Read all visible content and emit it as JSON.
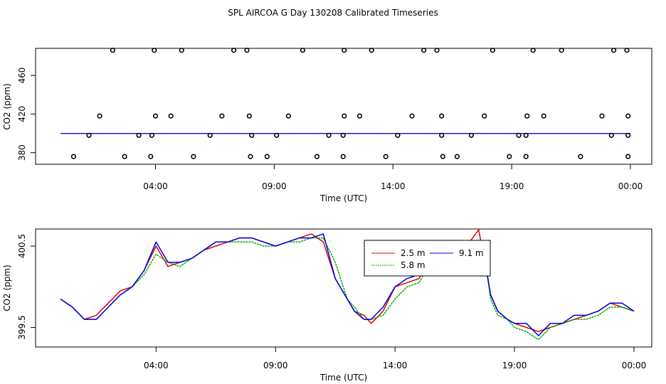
{
  "title": "SPL AIRCOA G  Day 130208  Calibrated Timeseries",
  "colors": {
    "s25": "#e00000",
    "s58": "#00b000",
    "s91": "#0000e0",
    "axis": "#000000",
    "bg": "#ffffff"
  },
  "chart_data": [
    {
      "type": "scatter",
      "title": "SPL AIRCOA G  Day 130208  Calibrated Timeseries",
      "xlabel": "Time (UTC)",
      "ylabel": "CO2 (ppm)",
      "xlim": [
        0,
        24
      ],
      "ylim": [
        368,
        488
      ],
      "xticks": [
        4,
        9,
        14,
        19,
        24
      ],
      "xtick_labels": [
        "04:00",
        "09:00",
        "14:00",
        "19:00",
        "00:00"
      ],
      "yticks": [
        380,
        420,
        460
      ],
      "ytick_labels": [
        "380",
        "420",
        "460"
      ],
      "points_description": "Calibration standard measurements (circles) at roughly 376, 398, 418 and 486 ppm",
      "points": [
        [
          0.55,
          376
        ],
        [
          2.7,
          376
        ],
        [
          3.8,
          376
        ],
        [
          5.6,
          376
        ],
        [
          8.0,
          376
        ],
        [
          8.7,
          376
        ],
        [
          10.8,
          376
        ],
        [
          11.9,
          376
        ],
        [
          13.7,
          376
        ],
        [
          16.1,
          376
        ],
        [
          16.7,
          376
        ],
        [
          18.9,
          376
        ],
        [
          19.6,
          376
        ],
        [
          21.9,
          376
        ],
        [
          23.9,
          376
        ],
        [
          1.2,
          398
        ],
        [
          3.3,
          398
        ],
        [
          3.85,
          398
        ],
        [
          6.3,
          398
        ],
        [
          8.05,
          398
        ],
        [
          9.1,
          398
        ],
        [
          11.3,
          398
        ],
        [
          11.9,
          398
        ],
        [
          14.2,
          398
        ],
        [
          16.05,
          398
        ],
        [
          17.3,
          398
        ],
        [
          19.3,
          398
        ],
        [
          19.6,
          398
        ],
        [
          23.2,
          398
        ],
        [
          23.9,
          398
        ],
        [
          1.65,
          418
        ],
        [
          4.0,
          418
        ],
        [
          4.65,
          418
        ],
        [
          6.8,
          418
        ],
        [
          7.95,
          418
        ],
        [
          9.6,
          418
        ],
        [
          11.95,
          418
        ],
        [
          12.6,
          418
        ],
        [
          14.8,
          418
        ],
        [
          16.05,
          418
        ],
        [
          17.85,
          418
        ],
        [
          19.65,
          418
        ],
        [
          20.35,
          418
        ],
        [
          22.8,
          418
        ],
        [
          23.9,
          418
        ],
        [
          2.2,
          486
        ],
        [
          3.95,
          486
        ],
        [
          5.1,
          486
        ],
        [
          7.3,
          486
        ],
        [
          7.85,
          486
        ],
        [
          10.2,
          486
        ],
        [
          11.95,
          486
        ],
        [
          13.1,
          486
        ],
        [
          15.3,
          486
        ],
        [
          15.85,
          486
        ],
        [
          18.2,
          486
        ],
        [
          19.9,
          486
        ],
        [
          21.1,
          486
        ],
        [
          23.3,
          486
        ],
        [
          23.85,
          486
        ]
      ],
      "series": [
        {
          "name": "2.5 m",
          "values": [
            [
              0,
              399.85
            ],
            [
              24,
              399.9
            ]
          ]
        },
        {
          "name": "5.8 m",
          "values": [
            [
              0,
              399.85
            ],
            [
              24,
              399.9
            ]
          ]
        },
        {
          "name": "9.1 m",
          "values": [
            [
              0,
              399.9
            ],
            [
              24,
              399.9
            ]
          ]
        }
      ]
    },
    {
      "type": "line",
      "xlabel": "Time (UTC)",
      "ylabel": "CO2 (ppm)",
      "xlim": [
        0,
        24
      ],
      "ylim": [
        399.26,
        400.71
      ],
      "xticks": [
        4,
        9,
        14,
        19,
        24
      ],
      "xtick_labels": [
        "04:00",
        "09:00",
        "14:00",
        "19:00",
        "00:00"
      ],
      "yticks": [
        399.5,
        400.5
      ],
      "ytick_labels": [
        "399.5",
        "400.5"
      ],
      "legend": [
        "2.5 m",
        "5.8 m",
        "9.1 m"
      ],
      "legend_placement": "top-center",
      "x": [
        0.0,
        0.5,
        1.0,
        1.5,
        2.0,
        2.5,
        3.0,
        3.5,
        4.0,
        4.5,
        5.0,
        5.5,
        6.0,
        6.5,
        7.0,
        7.5,
        8.0,
        8.5,
        9.0,
        9.5,
        10.0,
        10.5,
        11.0,
        11.5,
        12.0,
        12.3,
        12.7,
        13.0,
        13.5,
        14.0,
        14.5,
        15.0,
        15.5,
        16.0,
        16.5,
        17.0,
        17.5,
        17.7,
        18.0,
        18.3,
        18.7,
        19.0,
        19.5,
        20.0,
        20.5,
        21.0,
        21.5,
        22.0,
        22.5,
        23.0,
        23.5,
        24.0
      ],
      "series": [
        {
          "name": "2.5 m",
          "values": [
            399.85,
            399.75,
            399.6,
            399.65,
            399.8,
            399.95,
            400.0,
            400.2,
            400.5,
            400.25,
            400.3,
            400.35,
            400.45,
            400.5,
            400.55,
            400.6,
            400.6,
            400.55,
            400.5,
            400.55,
            400.6,
            400.65,
            400.55,
            400.1,
            399.85,
            399.7,
            399.65,
            399.55,
            399.7,
            400.0,
            400.05,
            400.1,
            400.35,
            400.2,
            400.3,
            400.5,
            400.7,
            400.4,
            399.9,
            399.7,
            399.6,
            399.55,
            399.5,
            399.45,
            399.5,
            399.55,
            399.6,
            399.65,
            399.7,
            399.8,
            399.75,
            399.7
          ]
        },
        {
          "name": "5.8 m",
          "values": [
            399.85,
            399.75,
            399.6,
            399.6,
            399.75,
            399.9,
            400.0,
            400.15,
            400.4,
            400.3,
            400.25,
            400.35,
            400.45,
            400.55,
            400.55,
            400.55,
            400.55,
            400.5,
            400.5,
            400.55,
            400.55,
            400.6,
            400.6,
            400.3,
            399.85,
            399.75,
            399.6,
            399.6,
            399.65,
            399.85,
            400.0,
            400.05,
            400.3,
            400.25,
            400.25,
            400.4,
            400.55,
            400.5,
            399.85,
            399.65,
            399.6,
            399.5,
            399.45,
            399.35,
            399.5,
            399.55,
            399.6,
            399.6,
            399.65,
            399.75,
            399.75,
            399.7
          ]
        },
        {
          "name": "9.1 m",
          "values": [
            399.85,
            399.75,
            399.6,
            399.6,
            399.75,
            399.9,
            400.0,
            400.2,
            400.55,
            400.3,
            400.3,
            400.35,
            400.45,
            400.55,
            400.55,
            400.6,
            400.6,
            400.55,
            400.5,
            400.55,
            400.6,
            400.6,
            400.65,
            400.1,
            399.85,
            399.7,
            399.6,
            399.6,
            399.75,
            400.0,
            400.1,
            400.15,
            400.35,
            400.3,
            400.25,
            400.35,
            400.5,
            400.45,
            399.9,
            399.7,
            399.6,
            399.55,
            399.55,
            399.4,
            399.55,
            399.55,
            399.65,
            399.65,
            399.7,
            399.8,
            399.8,
            399.7
          ]
        }
      ]
    }
  ]
}
